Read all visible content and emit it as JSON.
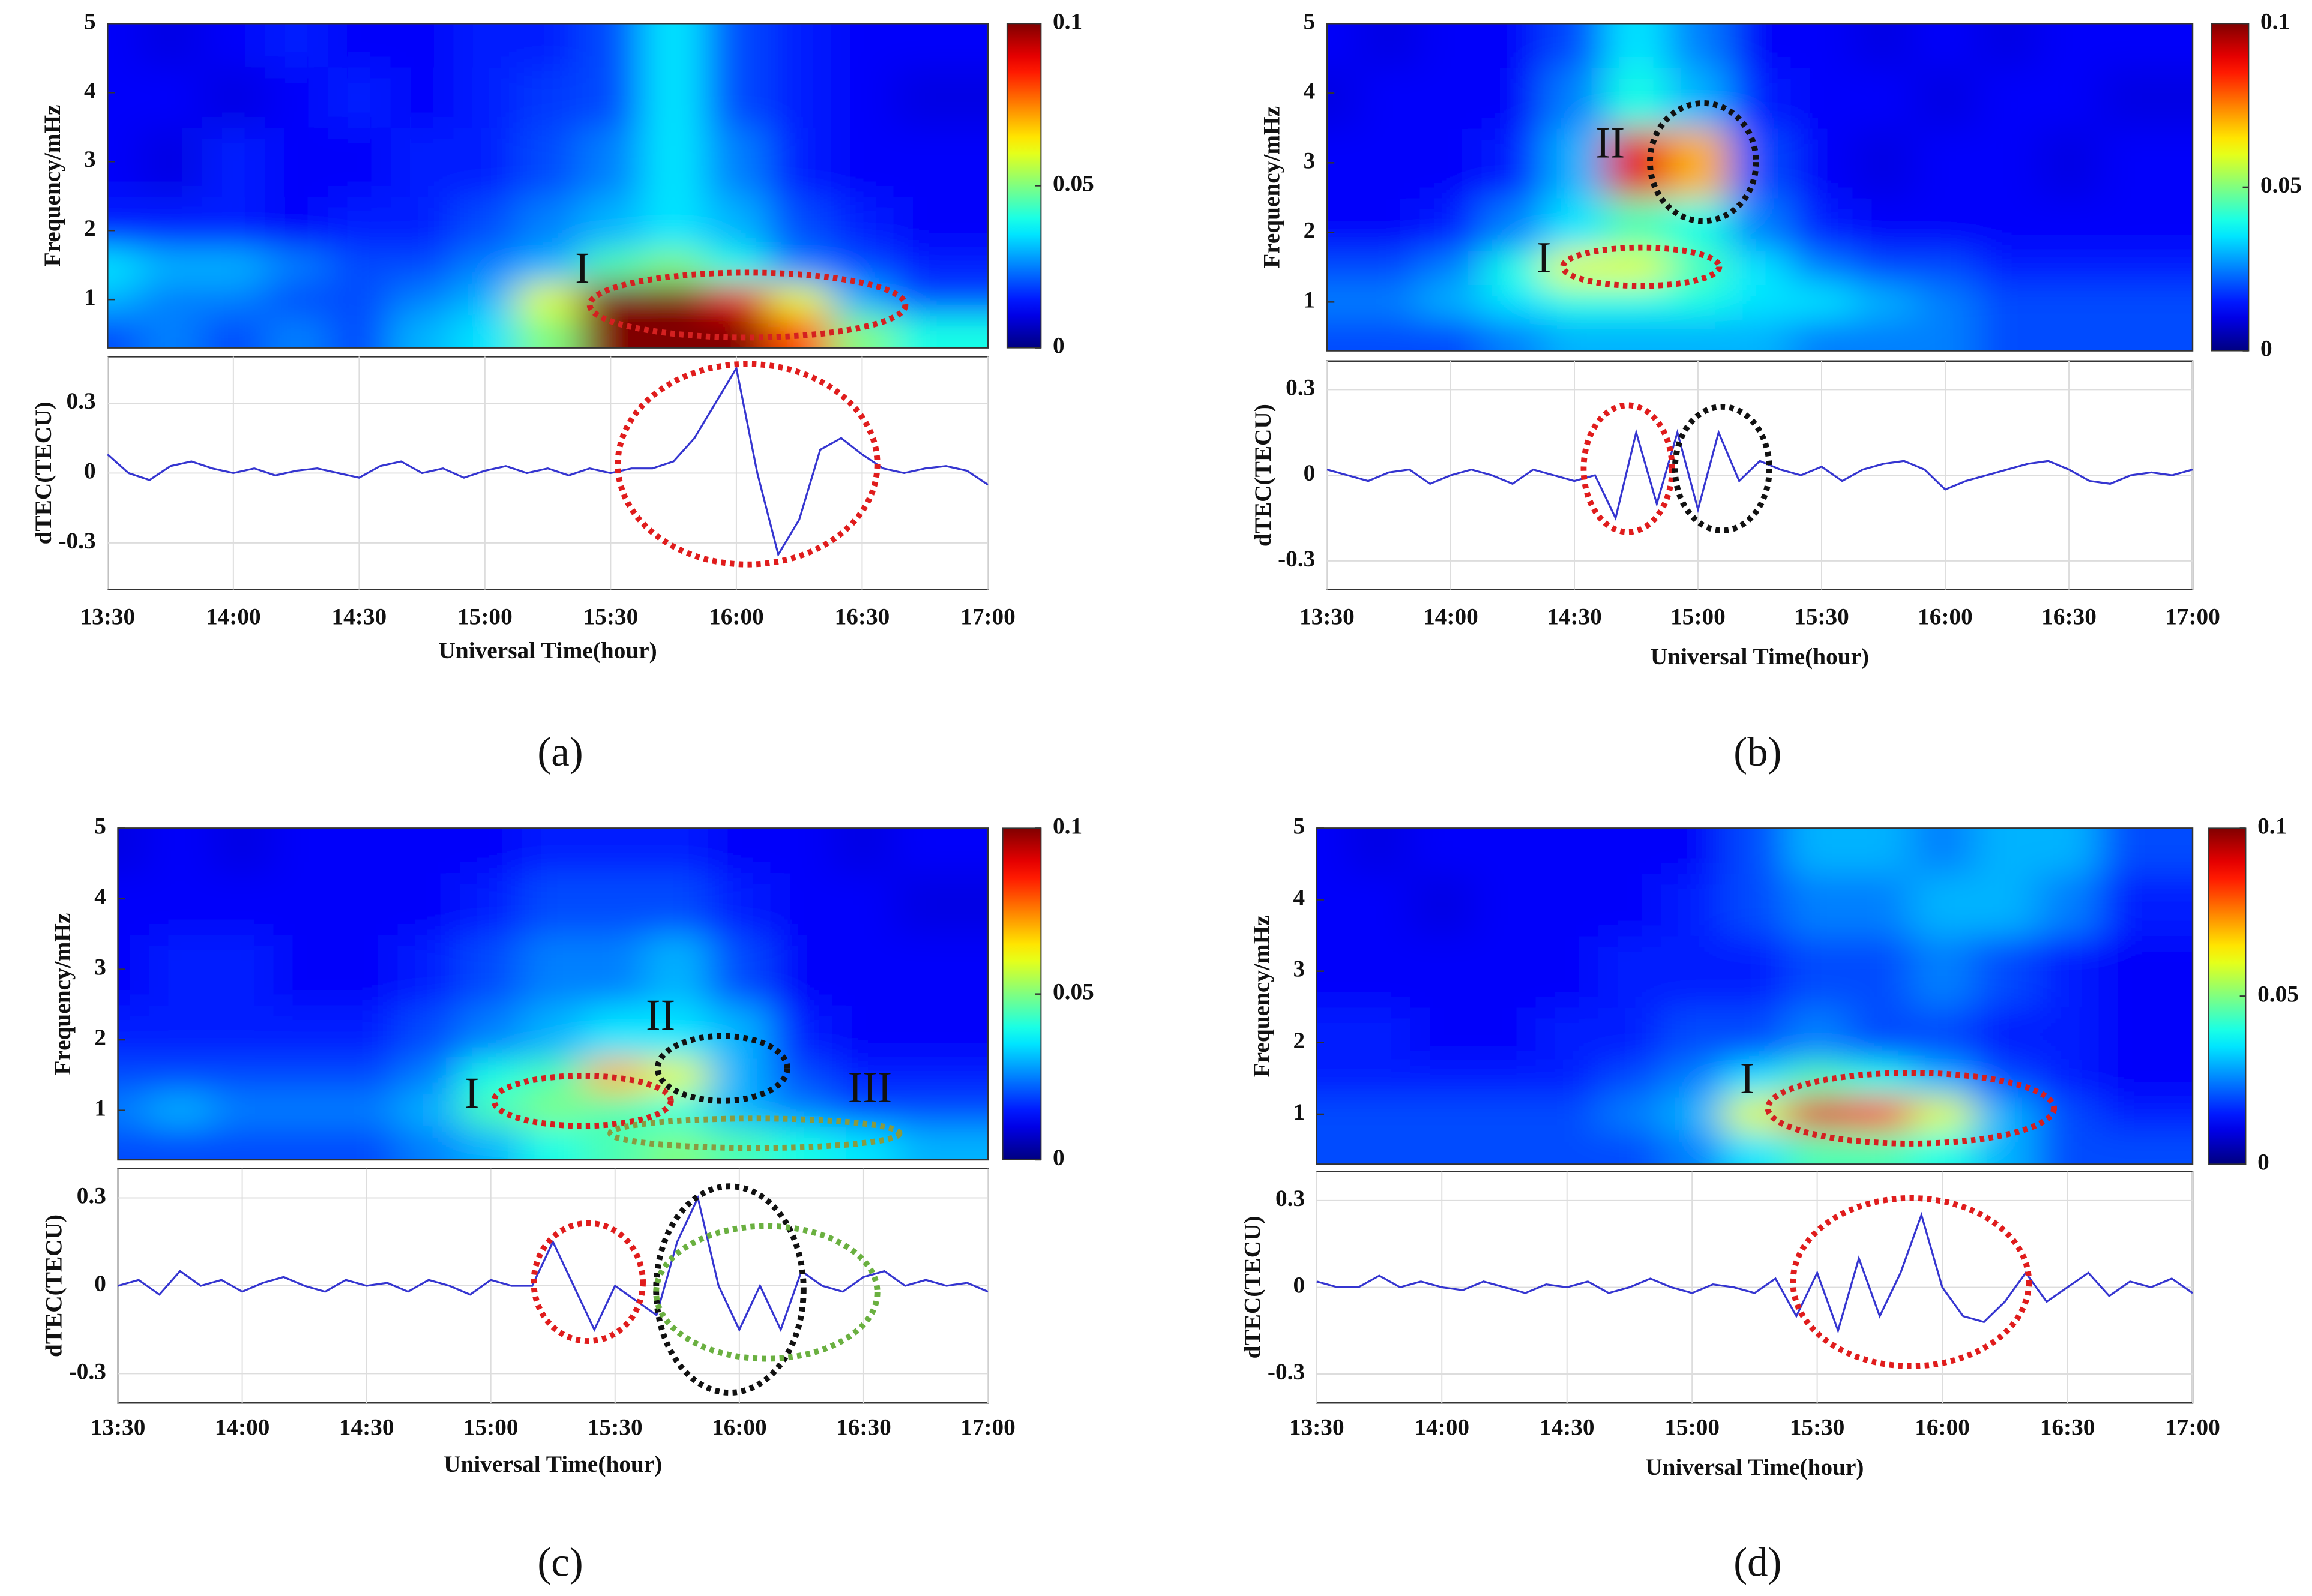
{
  "chart_data": [
    {
      "type": "heatmap",
      "ylabel": "Frequency/mHz",
      "colormap": "jet",
      "x": [
        "13:30",
        "13:45",
        "14:00",
        "14:15",
        "14:30",
        "14:45",
        "15:00",
        "15:15",
        "15:30",
        "15:45",
        "16:00",
        "16:15",
        "16:30",
        "16:45",
        "17:00"
      ],
      "y": [
        0.55,
        1,
        1.5,
        2,
        3,
        4,
        4.75
      ],
      "z": [
        [
          0.02,
          0.025,
          0.02,
          0.025,
          0.02,
          0.03,
          0.035,
          0.05,
          0.1,
          0.1,
          0.1,
          0.08,
          0.05,
          0.04,
          0.04
        ],
        [
          0.03,
          0.025,
          0.025,
          0.02,
          0.02,
          0.025,
          0.03,
          0.06,
          0.1,
          0.1,
          0.09,
          0.06,
          0.03,
          0.02,
          0.02
        ],
        [
          0.035,
          0.03,
          0.03,
          0.025,
          0.02,
          0.02,
          0.025,
          0.03,
          0.045,
          0.05,
          0.04,
          0.025,
          0.02,
          0.015,
          0.015
        ],
        [
          0.015,
          0.015,
          0.015,
          0.012,
          0.015,
          0.015,
          0.02,
          0.025,
          0.03,
          0.035,
          0.03,
          0.02,
          0.015,
          0.012,
          0.012
        ],
        [
          0.012,
          0.01,
          0.015,
          0.012,
          0.012,
          0.015,
          0.015,
          0.02,
          0.025,
          0.035,
          0.025,
          0.015,
          0.012,
          0.012,
          0.012
        ],
        [
          0.012,
          0.012,
          0.01,
          0.012,
          0.015,
          0.012,
          0.015,
          0.018,
          0.02,
          0.035,
          0.02,
          0.015,
          0.012,
          0.01,
          0.01
        ],
        [
          0.012,
          0.01,
          0.012,
          0.015,
          0.012,
          0.012,
          0.015,
          0.015,
          0.02,
          0.035,
          0.02,
          0.015,
          0.012,
          0.012,
          0.012
        ]
      ],
      "xlim": [
        "13:30",
        "17:00"
      ],
      "ylim": [
        0.3,
        5
      ],
      "yticks": [
        1,
        2,
        3,
        4,
        5
      ],
      "clim": [
        0,
        0.1
      ],
      "cticks": [
        0,
        0.05,
        0.1
      ],
      "annotations": [
        {
          "text": "I",
          "color": "#d42020"
        }
      ]
    },
    {
      "type": "line",
      "ylabel": "dTEC(TECU)",
      "xlabel": "Universal Time(hour)",
      "caption": "(a)",
      "color": "#3535d0",
      "grid": true,
      "x": [
        "13:30",
        "13:35",
        "13:40",
        "13:45",
        "13:50",
        "13:55",
        "14:00",
        "14:05",
        "14:10",
        "14:15",
        "14:20",
        "14:25",
        "14:30",
        "14:35",
        "14:40",
        "14:45",
        "14:50",
        "14:55",
        "15:00",
        "15:05",
        "15:10",
        "15:15",
        "15:20",
        "15:25",
        "15:30",
        "15:35",
        "15:40",
        "15:45",
        "15:50",
        "15:55",
        "16:00",
        "16:05",
        "16:10",
        "16:15",
        "16:20",
        "16:25",
        "16:30",
        "16:35",
        "16:40",
        "16:45",
        "16:50",
        "16:55",
        "17:00"
      ],
      "values": [
        0.08,
        0.0,
        -0.03,
        0.03,
        0.05,
        0.02,
        0.0,
        0.02,
        -0.01,
        0.01,
        0.02,
        0.0,
        -0.02,
        0.03,
        0.05,
        0.0,
        0.02,
        -0.02,
        0.01,
        0.03,
        0.0,
        0.02,
        -0.01,
        0.02,
        0.0,
        0.02,
        0.02,
        0.05,
        0.15,
        0.3,
        0.45,
        0.0,
        -0.35,
        -0.2,
        0.1,
        0.15,
        0.08,
        0.02,
        0.0,
        0.02,
        0.03,
        0.01,
        -0.05
      ],
      "xlim": [
        "13:30",
        "17:00"
      ],
      "xticks": [
        "13:30",
        "14:00",
        "14:30",
        "15:00",
        "15:30",
        "16:00",
        "16:30",
        "17:00"
      ],
      "ylim": [
        -0.5,
        0.5
      ],
      "yticks": [
        -0.3,
        0,
        0.3
      ],
      "highlight_colors": [
        "#e01c1c"
      ]
    },
    {
      "type": "heatmap",
      "ylabel": "Frequency/mHz",
      "colormap": "jet",
      "x": [
        "13:30",
        "13:45",
        "14:00",
        "14:15",
        "14:30",
        "14:45",
        "15:00",
        "15:15",
        "15:30",
        "15:45",
        "16:00",
        "16:15",
        "16:30",
        "16:45",
        "17:00"
      ],
      "y": [
        0.55,
        1,
        1.5,
        2,
        3,
        4,
        4.75
      ],
      "z": [
        [
          0.02,
          0.02,
          0.02,
          0.025,
          0.03,
          0.03,
          0.03,
          0.03,
          0.025,
          0.025,
          0.025,
          0.02,
          0.02,
          0.02,
          0.02
        ],
        [
          0.025,
          0.025,
          0.03,
          0.035,
          0.04,
          0.04,
          0.04,
          0.035,
          0.035,
          0.03,
          0.025,
          0.02,
          0.02,
          0.02,
          0.02
        ],
        [
          0.02,
          0.02,
          0.025,
          0.04,
          0.06,
          0.06,
          0.045,
          0.035,
          0.025,
          0.02,
          0.02,
          0.015,
          0.015,
          0.015,
          0.015
        ],
        [
          0.012,
          0.012,
          0.015,
          0.025,
          0.035,
          0.045,
          0.04,
          0.025,
          0.015,
          0.012,
          0.012,
          0.012,
          0.012,
          0.012,
          0.012
        ],
        [
          0.012,
          0.012,
          0.012,
          0.015,
          0.03,
          0.09,
          0.07,
          0.02,
          0.012,
          0.01,
          0.012,
          0.012,
          0.01,
          0.012,
          0.012
        ],
        [
          0.01,
          0.012,
          0.012,
          0.012,
          0.025,
          0.04,
          0.03,
          0.015,
          0.012,
          0.012,
          0.01,
          0.012,
          0.012,
          0.01,
          0.01
        ],
        [
          0.012,
          0.01,
          0.012,
          0.012,
          0.02,
          0.035,
          0.025,
          0.012,
          0.012,
          0.01,
          0.012,
          0.01,
          0.012,
          0.012,
          0.012
        ]
      ],
      "xlim": [
        "13:30",
        "17:00"
      ],
      "ylim": [
        0.3,
        5
      ],
      "yticks": [
        1,
        2,
        3,
        4,
        5
      ],
      "clim": [
        0,
        0.1
      ],
      "cticks": [
        0,
        0.05,
        0.1
      ],
      "annotations": [
        {
          "text": "I",
          "color": "#d42020"
        },
        {
          "text": "II",
          "color": "#111111"
        }
      ]
    },
    {
      "type": "line",
      "ylabel": "dTEC(TECU)",
      "xlabel": "Universal Time(hour)",
      "caption": "(b)",
      "color": "#3535d0",
      "grid": true,
      "x": [
        "13:30",
        "13:35",
        "13:40",
        "13:45",
        "13:50",
        "13:55",
        "14:00",
        "14:05",
        "14:10",
        "14:15",
        "14:20",
        "14:25",
        "14:30",
        "14:35",
        "14:40",
        "14:45",
        "14:50",
        "14:55",
        "15:00",
        "15:05",
        "15:10",
        "15:15",
        "15:20",
        "15:25",
        "15:30",
        "15:35",
        "15:40",
        "15:45",
        "15:50",
        "15:55",
        "16:00",
        "16:05",
        "16:10",
        "16:15",
        "16:20",
        "16:25",
        "16:30",
        "16:35",
        "16:40",
        "16:45",
        "16:50",
        "16:55",
        "17:00"
      ],
      "values": [
        0.02,
        0.0,
        -0.02,
        0.01,
        0.02,
        -0.03,
        0.0,
        0.02,
        0.0,
        -0.03,
        0.02,
        0.0,
        -0.02,
        0.0,
        -0.15,
        0.15,
        -0.1,
        0.15,
        -0.12,
        0.15,
        -0.02,
        0.05,
        0.02,
        0.0,
        0.03,
        -0.02,
        0.02,
        0.04,
        0.05,
        0.02,
        -0.05,
        -0.02,
        0.0,
        0.02,
        0.04,
        0.05,
        0.02,
        -0.02,
        -0.03,
        0.0,
        0.01,
        0.0,
        0.02
      ],
      "xlim": [
        "13:30",
        "17:00"
      ],
      "xticks": [
        "13:30",
        "14:00",
        "14:30",
        "15:00",
        "15:30",
        "16:00",
        "16:30",
        "17:00"
      ],
      "ylim": [
        -0.4,
        0.4
      ],
      "yticks": [
        -0.3,
        0,
        0.3
      ],
      "highlight_colors": [
        "#e01c1c",
        "#111111"
      ]
    },
    {
      "type": "heatmap",
      "ylabel": "Frequency/mHz",
      "colormap": "jet",
      "x": [
        "13:30",
        "13:45",
        "14:00",
        "14:15",
        "14:30",
        "14:45",
        "15:00",
        "15:15",
        "15:30",
        "15:45",
        "16:00",
        "16:15",
        "16:30",
        "16:45",
        "17:00"
      ],
      "y": [
        0.55,
        1,
        1.5,
        2,
        3,
        4,
        4.75
      ],
      "z": [
        [
          0.02,
          0.02,
          0.02,
          0.02,
          0.02,
          0.025,
          0.03,
          0.04,
          0.045,
          0.05,
          0.045,
          0.04,
          0.035,
          0.03,
          0.03
        ],
        [
          0.025,
          0.03,
          0.025,
          0.025,
          0.025,
          0.03,
          0.045,
          0.05,
          0.045,
          0.04,
          0.03,
          0.025,
          0.02,
          0.02,
          0.02
        ],
        [
          0.02,
          0.02,
          0.02,
          0.02,
          0.02,
          0.025,
          0.04,
          0.045,
          0.07,
          0.06,
          0.03,
          0.02,
          0.015,
          0.015,
          0.015
        ],
        [
          0.015,
          0.015,
          0.015,
          0.015,
          0.015,
          0.02,
          0.025,
          0.03,
          0.035,
          0.035,
          0.03,
          0.015,
          0.012,
          0.012,
          0.012
        ],
        [
          0.012,
          0.015,
          0.015,
          0.012,
          0.012,
          0.015,
          0.02,
          0.025,
          0.025,
          0.03,
          0.02,
          0.012,
          0.012,
          0.012,
          0.012
        ],
        [
          0.012,
          0.012,
          0.012,
          0.012,
          0.012,
          0.012,
          0.015,
          0.02,
          0.02,
          0.02,
          0.015,
          0.012,
          0.012,
          0.01,
          0.01
        ],
        [
          0.01,
          0.012,
          0.01,
          0.012,
          0.012,
          0.012,
          0.012,
          0.015,
          0.015,
          0.015,
          0.012,
          0.012,
          0.01,
          0.012,
          0.012
        ]
      ],
      "xlim": [
        "13:30",
        "17:00"
      ],
      "ylim": [
        0.3,
        5
      ],
      "yticks": [
        1,
        2,
        3,
        4,
        5
      ],
      "clim": [
        0,
        0.1
      ],
      "cticks": [
        0,
        0.05,
        0.1
      ],
      "annotations": [
        {
          "text": "I",
          "color": "#d42020"
        },
        {
          "text": "II",
          "color": "#111111"
        },
        {
          "text": "III",
          "color": "#8a9a40"
        }
      ]
    },
    {
      "type": "line",
      "ylabel": "dTEC(TECU)",
      "xlabel": "Universal Time(hour)",
      "caption": "(c)",
      "color": "#3535d0",
      "grid": true,
      "x": [
        "13:30",
        "13:35",
        "13:40",
        "13:45",
        "13:50",
        "13:55",
        "14:00",
        "14:05",
        "14:10",
        "14:15",
        "14:20",
        "14:25",
        "14:30",
        "14:35",
        "14:40",
        "14:45",
        "14:50",
        "14:55",
        "15:00",
        "15:05",
        "15:10",
        "15:15",
        "15:20",
        "15:25",
        "15:30",
        "15:35",
        "15:40",
        "15:45",
        "15:50",
        "15:55",
        "16:00",
        "16:05",
        "16:10",
        "16:15",
        "16:20",
        "16:25",
        "16:30",
        "16:35",
        "16:40",
        "16:45",
        "16:50",
        "16:55",
        "17:00"
      ],
      "values": [
        0.0,
        0.02,
        -0.03,
        0.05,
        0.0,
        0.02,
        -0.02,
        0.01,
        0.03,
        0.0,
        -0.02,
        0.02,
        0.0,
        0.01,
        -0.02,
        0.02,
        0.0,
        -0.03,
        0.02,
        0.0,
        0.0,
        0.15,
        0.0,
        -0.15,
        0.0,
        -0.05,
        -0.1,
        0.15,
        0.3,
        0.0,
        -0.15,
        0.0,
        -0.15,
        0.05,
        0.0,
        -0.02,
        0.03,
        0.05,
        0.0,
        0.02,
        0.0,
        0.01,
        -0.02
      ],
      "xlim": [
        "13:30",
        "17:00"
      ],
      "xticks": [
        "13:30",
        "14:00",
        "14:30",
        "15:00",
        "15:30",
        "16:00",
        "16:30",
        "17:00"
      ],
      "ylim": [
        -0.4,
        0.4
      ],
      "yticks": [
        -0.3,
        0,
        0.3
      ],
      "highlight_colors": [
        "#e01c1c",
        "#111111",
        "#6ab040"
      ]
    },
    {
      "type": "heatmap",
      "ylabel": "Frequency/mHz",
      "colormap": "jet",
      "x": [
        "13:30",
        "13:45",
        "14:00",
        "14:15",
        "14:30",
        "14:45",
        "15:00",
        "15:15",
        "15:30",
        "15:45",
        "16:00",
        "16:15",
        "16:30",
        "16:45",
        "17:00"
      ],
      "y": [
        0.55,
        1,
        1.5,
        2,
        3,
        4,
        4.75
      ],
      "z": [
        [
          0.02,
          0.02,
          0.02,
          0.02,
          0.02,
          0.02,
          0.025,
          0.035,
          0.045,
          0.045,
          0.04,
          0.03,
          0.02,
          0.02,
          0.02
        ],
        [
          0.02,
          0.02,
          0.02,
          0.02,
          0.02,
          0.025,
          0.03,
          0.06,
          0.09,
          0.085,
          0.06,
          0.03,
          0.02,
          0.015,
          0.015
        ],
        [
          0.015,
          0.015,
          0.015,
          0.015,
          0.015,
          0.02,
          0.025,
          0.035,
          0.045,
          0.04,
          0.03,
          0.02,
          0.015,
          0.012,
          0.012
        ],
        [
          0.015,
          0.015,
          0.012,
          0.012,
          0.015,
          0.015,
          0.02,
          0.02,
          0.025,
          0.02,
          0.02,
          0.015,
          0.015,
          0.012,
          0.012
        ],
        [
          0.012,
          0.012,
          0.012,
          0.012,
          0.012,
          0.015,
          0.015,
          0.015,
          0.02,
          0.02,
          0.025,
          0.02,
          0.015,
          0.012,
          0.012
        ],
        [
          0.012,
          0.012,
          0.01,
          0.012,
          0.012,
          0.012,
          0.015,
          0.02,
          0.025,
          0.025,
          0.03,
          0.03,
          0.025,
          0.015,
          0.015
        ],
        [
          0.012,
          0.01,
          0.012,
          0.012,
          0.012,
          0.012,
          0.012,
          0.02,
          0.03,
          0.03,
          0.025,
          0.03,
          0.03,
          0.02,
          0.02
        ]
      ],
      "xlim": [
        "13:30",
        "17:00"
      ],
      "ylim": [
        0.3,
        5
      ],
      "yticks": [
        1,
        2,
        3,
        4,
        5
      ],
      "clim": [
        0,
        0.1
      ],
      "cticks": [
        0,
        0.05,
        0.1
      ],
      "annotations": [
        {
          "text": "I",
          "color": "#d42020"
        }
      ]
    },
    {
      "type": "line",
      "ylabel": "dTEC(TECU)",
      "xlabel": "Universal Time(hour)",
      "caption": "(d)",
      "color": "#3535d0",
      "grid": true,
      "x": [
        "13:30",
        "13:35",
        "13:40",
        "13:45",
        "13:50",
        "13:55",
        "14:00",
        "14:05",
        "14:10",
        "14:15",
        "14:20",
        "14:25",
        "14:30",
        "14:35",
        "14:40",
        "14:45",
        "14:50",
        "14:55",
        "15:00",
        "15:05",
        "15:10",
        "15:15",
        "15:20",
        "15:25",
        "15:30",
        "15:35",
        "15:40",
        "15:45",
        "15:50",
        "15:55",
        "16:00",
        "16:05",
        "16:10",
        "16:15",
        "16:20",
        "16:25",
        "16:30",
        "16:35",
        "16:40",
        "16:45",
        "16:50",
        "16:55",
        "17:00"
      ],
      "values": [
        0.02,
        0.0,
        0.0,
        0.04,
        0.0,
        0.02,
        0.0,
        -0.01,
        0.02,
        0.0,
        -0.02,
        0.01,
        0.0,
        0.02,
        -0.02,
        0.0,
        0.03,
        0.0,
        -0.02,
        0.01,
        0.0,
        -0.02,
        0.03,
        -0.1,
        0.05,
        -0.15,
        0.1,
        -0.1,
        0.05,
        0.25,
        0.0,
        -0.1,
        -0.12,
        -0.05,
        0.05,
        -0.05,
        0.0,
        0.05,
        -0.03,
        0.02,
        0.0,
        0.03,
        -0.02
      ],
      "xlim": [
        "13:30",
        "17:00"
      ],
      "xticks": [
        "13:30",
        "14:00",
        "14:30",
        "15:00",
        "15:30",
        "16:00",
        "16:30",
        "17:00"
      ],
      "ylim": [
        -0.4,
        0.4
      ],
      "yticks": [
        -0.3,
        0,
        0.3
      ],
      "highlight_colors": [
        "#e01c1c"
      ]
    }
  ]
}
